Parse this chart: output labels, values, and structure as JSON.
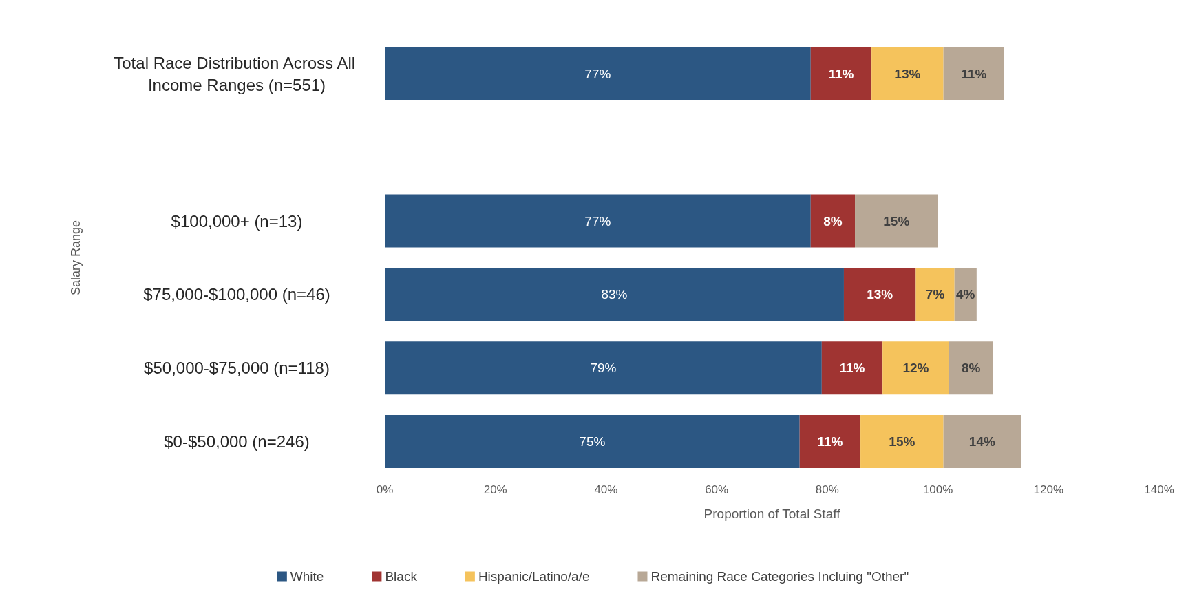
{
  "chart_data": {
    "type": "bar",
    "orientation": "horizontal",
    "stacked": true,
    "xlabel": "Proportion of Total Staff",
    "ylabel": "Salary Range",
    "categories": [
      "Total Race Distribution Across All Income Ranges (n=551)",
      null,
      "$100,000+ (n=13)",
      "$75,000-$100,000 (n=46)",
      "$50,000-$75,000 (n=118)",
      "$0-$50,000 (n=246)"
    ],
    "series": [
      {
        "name": "White",
        "color": "#2c5783",
        "values": [
          77,
          null,
          77,
          83,
          79,
          75
        ],
        "value_labels": [
          "77%",
          null,
          "77%",
          "83%",
          "79%",
          "75%"
        ]
      },
      {
        "name": "Black",
        "color": "#a03432",
        "values": [
          11,
          null,
          8,
          13,
          11,
          11
        ],
        "value_labels": [
          "11%",
          null,
          "8%",
          "13%",
          "11%",
          "11%"
        ]
      },
      {
        "name": "Hispanic/Latino/a/e",
        "color": "#f5c35c",
        "values": [
          13,
          null,
          null,
          7,
          12,
          15
        ],
        "value_labels": [
          "13%",
          null,
          null,
          "7%",
          "12%",
          "15%"
        ]
      },
      {
        "name": "Remaining Race Categories Incluing \"Other\"",
        "color": "#b8a896",
        "values": [
          11,
          null,
          15,
          4,
          8,
          14
        ],
        "value_labels": [
          "11%",
          null,
          "15%",
          "4%",
          "8%",
          "14%"
        ]
      }
    ],
    "xlim": [
      0,
      140
    ],
    "xticks": [
      {
        "value": 0,
        "label": "0%"
      },
      {
        "value": 20,
        "label": "20%"
      },
      {
        "value": 40,
        "label": "40%"
      },
      {
        "value": 60,
        "label": "60%"
      },
      {
        "value": 80,
        "label": "80%"
      },
      {
        "value": 100,
        "label": "100%"
      },
      {
        "value": 120,
        "label": "120%"
      },
      {
        "value": 140,
        "label": "140%"
      }
    ],
    "grid": false,
    "legend": "bottom"
  }
}
